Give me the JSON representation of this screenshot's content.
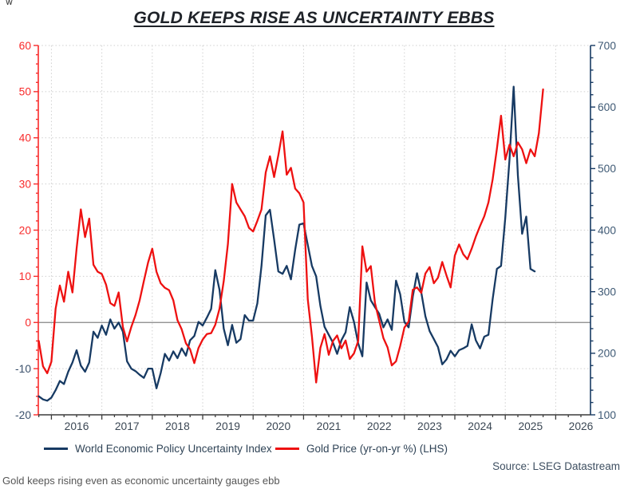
{
  "corner_mark": "w",
  "title": "GOLD KEEPS RISE AS UNCERTAINTY EBBS",
  "legend": {
    "items": [
      {
        "label": "World Economic Policy Uncertainty Index",
        "color": "#173a63"
      },
      {
        "label": "Gold Price (yr-on-yr %) (LHS)",
        "color": "#ee1111"
      }
    ]
  },
  "source": "Source: LSEG Datastream",
  "caption": "Gold keeps rising even as economic uncertainty gauges ebb",
  "chart_data": {
    "type": "line",
    "title": "GOLD KEEPS RISE AS UNCERTAINTY EBBS",
    "grid": true,
    "legend_position": "bottom",
    "x_domain": [
      2015.74,
      2026.69
    ],
    "x_ticks": [
      2016,
      2017,
      2018,
      2019,
      2020,
      2021,
      2022,
      2023,
      2024,
      2025,
      2026
    ],
    "left_axis": {
      "min": -20,
      "max": 60,
      "tick_step": 10,
      "minor_step": 2,
      "color": "#f82a2a",
      "negative_label_color": "#3a506b"
    },
    "right_axis": {
      "min": 100,
      "max": 700,
      "tick_step": 100,
      "minor_step": 20,
      "color": "#173a63",
      "label_color": "#3f5a75"
    },
    "zero_line_left_value": 0,
    "colors": {
      "grid": "#cfcfcf",
      "zero_line": "#858585",
      "bottom_axis": "#3c3c3c",
      "x_label": "#3b4754"
    },
    "series": [
      {
        "name": "World Economic Policy Uncertainty Index",
        "axis": "right",
        "color": "#173a63",
        "frequency": "monthly",
        "start": [
          2015,
          10
        ],
        "values": [
          130,
          125,
          123,
          128,
          140,
          155,
          150,
          170,
          185,
          205,
          180,
          170,
          185,
          235,
          225,
          245,
          230,
          255,
          240,
          250,
          235,
          187,
          175,
          171,
          165,
          160,
          175,
          175,
          143,
          168,
          199,
          188,
          203,
          192,
          208,
          196,
          221,
          228,
          251,
          245,
          258,
          272,
          335,
          303,
          240,
          213,
          246,
          217,
          223,
          262,
          253,
          253,
          281,
          342,
          424,
          433,
          385,
          333,
          329,
          342,
          320,
          368,
          409,
          411,
          376,
          342,
          325,
          277,
          243,
          230,
          217,
          199,
          221,
          234,
          275,
          251,
          216,
          195,
          315,
          286,
          275,
          264,
          242,
          255,
          238,
          318,
          296,
          251,
          242,
          292,
          330,
          299,
          260,
          236,
          223,
          210,
          182,
          190,
          204,
          195,
          205,
          208,
          212,
          247,
          221,
          208,
          227,
          230,
          288,
          337,
          342,
          420,
          515,
          633,
          489,
          394,
          422,
          337,
          333
        ]
      },
      {
        "name": "Gold Price (yr-on-yr %) (LHS)",
        "axis": "left",
        "color": "#ee1111",
        "frequency": "monthly",
        "start": [
          2015,
          10
        ],
        "values": [
          -4,
          -9.5,
          -11,
          -8.5,
          3,
          8,
          4.5,
          11,
          6.5,
          16,
          24.5,
          18.5,
          22.5,
          12.5,
          11,
          10.5,
          8.2,
          4.2,
          3.6,
          6.5,
          -1,
          -4.1,
          -1,
          1.6,
          4.8,
          9,
          13,
          16,
          11,
          8.5,
          7.5,
          7,
          4.8,
          0.5,
          -1.5,
          -4.5,
          -5.8,
          -8.8,
          -5.5,
          -3.7,
          -2.5,
          -2.3,
          -0.5,
          3,
          9,
          17,
          30,
          26,
          24.5,
          23,
          20.5,
          19.7,
          22,
          24.5,
          32.5,
          36,
          31.5,
          36.2,
          41.4,
          32,
          33.5,
          29,
          28,
          26,
          5,
          -3,
          -13,
          -5.5,
          -2.5,
          -7,
          -4,
          -2.8,
          -5.6,
          -3.9,
          -7.9,
          -6.7,
          -4,
          16.5,
          11,
          12.2,
          4.2,
          0.4,
          -3.4,
          -5.4,
          -9.3,
          -8.4,
          -5.1,
          -1.1,
          0.2,
          7.1,
          7.6,
          6.4,
          10.6,
          12,
          8.5,
          9.7,
          13.1,
          10.2,
          7.6,
          14.5,
          16.9,
          14.8,
          13.7,
          16,
          18.6,
          20.9,
          23,
          26,
          31,
          37.6,
          44.8,
          35.3,
          38.5,
          36,
          39,
          37.5,
          34.5,
          37.5,
          36,
          41,
          50.5
        ]
      }
    ]
  }
}
